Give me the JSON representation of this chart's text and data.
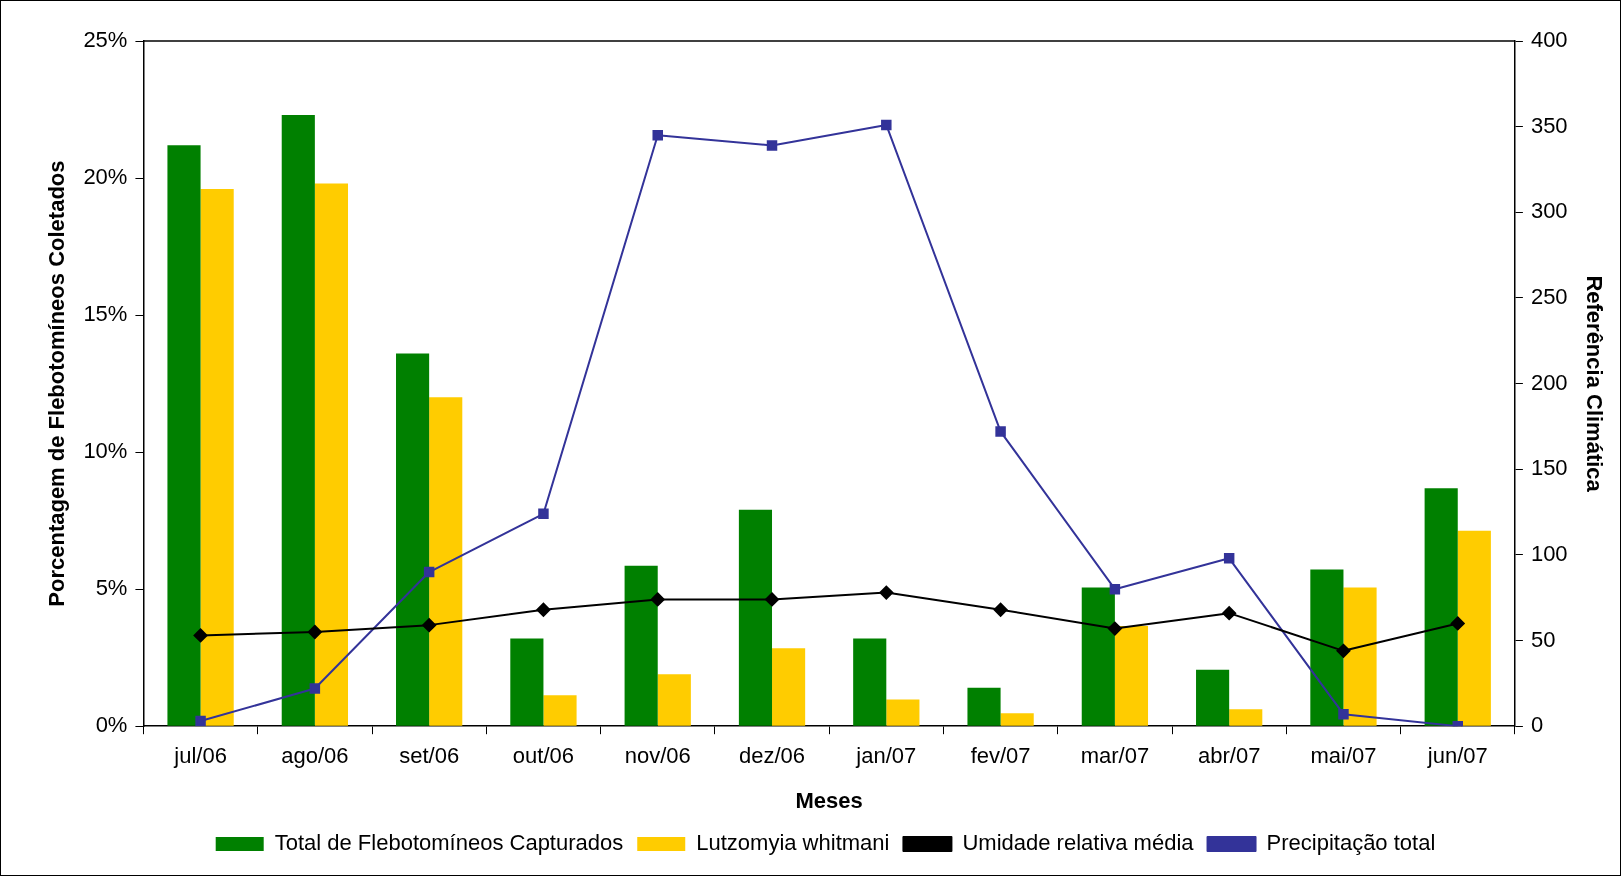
{
  "chart_data": {
    "type": "bar",
    "xlabel": "Meses",
    "ylabel": "Porcentagem de Flebotomíneos Coletados",
    "y2label": "Referência Climática",
    "categories": [
      "jul/06",
      "ago/06",
      "set/06",
      "out/06",
      "nov/06",
      "dez/06",
      "jan/07",
      "fev/07",
      "mar/07",
      "abr/07",
      "mai/07",
      "jun/07"
    ],
    "series": [
      {
        "name": "Total de Flebotomíneos Capturados",
        "color": "#008000",
        "values": [
          21.2,
          22.3,
          13.6,
          3.2,
          5.85,
          7.9,
          3.2,
          1.4,
          5.06,
          2.06,
          5.72,
          8.68
        ]
      },
      {
        "name": "Lutzomyia whitmani",
        "color": "#ffcc00",
        "values": [
          19.6,
          19.8,
          12.0,
          1.13,
          1.9,
          2.84,
          0.97,
          0.47,
          3.66,
          0.62,
          5.06,
          7.13
        ]
      },
      {
        "name": "Umidade relativa média",
        "type": "line",
        "axis": "y2",
        "color": "#000000",
        "marker": "diamond",
        "values": [
          53,
          55,
          59,
          68,
          74,
          74,
          78,
          68,
          57,
          66,
          44,
          60
        ]
      },
      {
        "name": "Precipitação total",
        "type": "line",
        "axis": "y2",
        "color": "#333399",
        "marker": "square",
        "values": [
          3,
          22,
          90,
          124,
          345,
          339,
          351,
          172,
          80,
          98,
          7,
          0
        ]
      }
    ],
    "ylim": [
      0,
      25
    ],
    "yticks": [
      {
        "value": 0,
        "label": "0%"
      },
      {
        "value": 5,
        "label": "5%"
      },
      {
        "value": 10,
        "label": "10%"
      },
      {
        "value": 15,
        "label": "15%"
      },
      {
        "value": 20,
        "label": "20%"
      },
      {
        "value": 25,
        "label": "25%"
      }
    ],
    "y2lim": [
      0,
      400
    ],
    "y2ticks": [
      0,
      50,
      100,
      150,
      200,
      250,
      300,
      350,
      400
    ],
    "grid": false,
    "legend": "bottom",
    "line_style": "solid"
  }
}
